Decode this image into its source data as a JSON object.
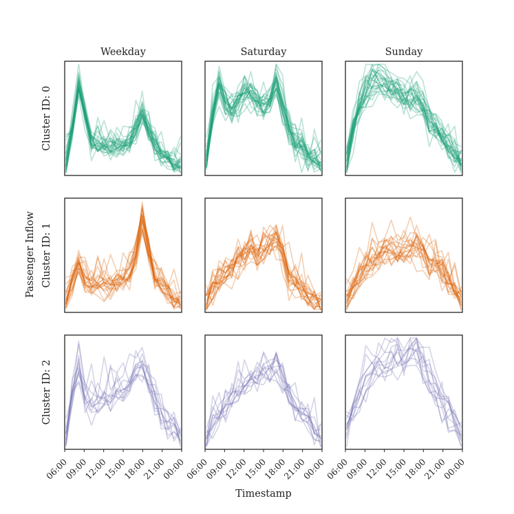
{
  "chart_data": {
    "type": "line",
    "title": "",
    "xlabel": "Timestamp",
    "ylabel": "Passenger Inflow",
    "columns": [
      "Weekday",
      "Saturday",
      "Sunday"
    ],
    "x_ticks": [
      "06:00",
      "09:00",
      "12:00",
      "15:00",
      "18:00",
      "21:00",
      "00:00"
    ],
    "x": [
      0,
      1,
      2,
      3,
      4,
      5,
      6,
      7,
      8,
      9,
      10,
      11,
      12,
      13,
      14,
      15,
      16,
      17,
      18
    ],
    "ylim": [
      0,
      1
    ],
    "grid": false,
    "line_opacity": 0.3,
    "clusters": [
      {
        "label": "Cluster ID: 0",
        "color": "#1b9e77",
        "line_count": 26,
        "panels": [
          {
            "name": "Weekday",
            "template": [
              0.08,
              0.42,
              0.78,
              0.55,
              0.3,
              0.26,
              0.26,
              0.24,
              0.25,
              0.24,
              0.3,
              0.4,
              0.55,
              0.4,
              0.26,
              0.18,
              0.13,
              0.1,
              0.08
            ],
            "noise": 0.045
          },
          {
            "name": "Saturday",
            "template": [
              0.12,
              0.52,
              0.82,
              0.64,
              0.58,
              0.64,
              0.7,
              0.74,
              0.66,
              0.58,
              0.62,
              0.82,
              0.6,
              0.38,
              0.28,
              0.24,
              0.16,
              0.12,
              0.1
            ],
            "noise": 0.06
          },
          {
            "name": "Sunday",
            "template": [
              0.12,
              0.4,
              0.6,
              0.74,
              0.82,
              0.84,
              0.8,
              0.76,
              0.74,
              0.7,
              0.64,
              0.68,
              0.62,
              0.48,
              0.4,
              0.32,
              0.24,
              0.18,
              0.12
            ],
            "noise": 0.06
          }
        ]
      },
      {
        "label": "Cluster ID: 1",
        "color": "#d95f02",
        "line_count": 20,
        "panels": [
          {
            "name": "Weekday",
            "template": [
              0.08,
              0.26,
              0.4,
              0.26,
              0.2,
              0.22,
              0.24,
              0.22,
              0.24,
              0.26,
              0.3,
              0.5,
              0.8,
              0.52,
              0.26,
              0.22,
              0.16,
              0.1,
              0.08
            ],
            "noise": 0.045
          },
          {
            "name": "Saturday",
            "template": [
              0.08,
              0.22,
              0.3,
              0.34,
              0.4,
              0.46,
              0.52,
              0.58,
              0.5,
              0.56,
              0.62,
              0.66,
              0.52,
              0.3,
              0.24,
              0.2,
              0.14,
              0.1,
              0.08
            ],
            "noise": 0.07
          },
          {
            "name": "Sunday",
            "template": [
              0.08,
              0.2,
              0.3,
              0.38,
              0.44,
              0.5,
              0.54,
              0.54,
              0.52,
              0.54,
              0.56,
              0.58,
              0.52,
              0.42,
              0.4,
              0.38,
              0.3,
              0.2,
              0.12
            ],
            "noise": 0.07
          }
        ]
      },
      {
        "label": "Cluster ID: 2",
        "color": "#7570b3",
        "line_count": 12,
        "panels": [
          {
            "name": "Weekday",
            "template": [
              0.12,
              0.5,
              0.74,
              0.48,
              0.38,
              0.42,
              0.44,
              0.46,
              0.5,
              0.52,
              0.58,
              0.66,
              0.76,
              0.6,
              0.46,
              0.36,
              0.26,
              0.18,
              0.08
            ],
            "noise": 0.07
          },
          {
            "name": "Saturday",
            "template": [
              0.1,
              0.22,
              0.3,
              0.4,
              0.48,
              0.52,
              0.58,
              0.64,
              0.66,
              0.7,
              0.72,
              0.78,
              0.64,
              0.48,
              0.4,
              0.32,
              0.26,
              0.18,
              0.1
            ],
            "noise": 0.07
          },
          {
            "name": "Sunday",
            "template": [
              0.14,
              0.32,
              0.48,
              0.62,
              0.7,
              0.74,
              0.76,
              0.78,
              0.8,
              0.82,
              0.84,
              0.86,
              0.78,
              0.64,
              0.52,
              0.42,
              0.34,
              0.24,
              0.14
            ],
            "noise": 0.07
          }
        ]
      }
    ]
  }
}
